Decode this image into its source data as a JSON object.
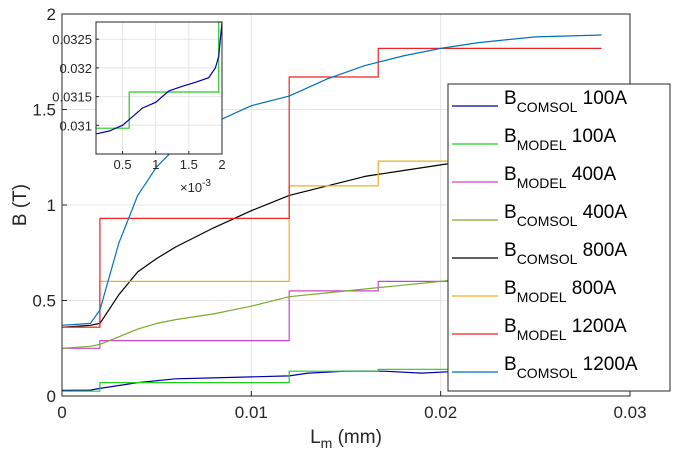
{
  "chart_data": {
    "type": "line",
    "title": "",
    "xlabel_main": "L",
    "xlabel_sub": "m",
    "xlabel_unit": " (mm)",
    "ylabel": "B (T)",
    "xlim": [
      0,
      0.03
    ],
    "ylim": [
      0,
      2
    ],
    "x_ticks": [
      "0",
      "0.01",
      "0.02",
      "0.03"
    ],
    "y_ticks": [
      "0",
      "0.5",
      "1",
      "1.5",
      "2"
    ],
    "grid": true,
    "legend_position": "right",
    "series": [
      {
        "name_main": "B",
        "name_sub": "COMSOL",
        "name_tail": " 100A",
        "color": "#0000aa",
        "x": [
          0,
          0.0015,
          0.002,
          0.004,
          0.006,
          0.008,
          0.01,
          0.012,
          0.013,
          0.015,
          0.017,
          0.019,
          0.021,
          0.023,
          0.025,
          0.027,
          0.0285
        ],
        "y": [
          0.03,
          0.031,
          0.04,
          0.07,
          0.09,
          0.095,
          0.1,
          0.105,
          0.12,
          0.13,
          0.13,
          0.12,
          0.13,
          0.15,
          0.155,
          0.16,
          0.16
        ]
      },
      {
        "name_main": "B",
        "name_sub": "MODEL",
        "name_tail": " 100A",
        "color": "#22cc22",
        "step": true,
        "x": [
          0,
          0.002,
          0.012,
          0.0167,
          0.0285
        ],
        "y": [
          0.025,
          0.07,
          0.13,
          0.14,
          0.14
        ]
      },
      {
        "name_main": "B",
        "name_sub": "MODEL",
        "name_tail": " 400A",
        "color": "#cc44cc",
        "step": true,
        "x": [
          0,
          0.002,
          0.012,
          0.0167,
          0.0285
        ],
        "y": [
          0.25,
          0.29,
          0.55,
          0.6,
          0.6
        ]
      },
      {
        "name_main": "B",
        "name_sub": "COMSOL",
        "name_tail": " 400A",
        "color": "#77ac30",
        "x": [
          0,
          0.0015,
          0.002,
          0.003,
          0.004,
          0.005,
          0.006,
          0.008,
          0.01,
          0.012,
          0.014,
          0.016,
          0.018,
          0.02,
          0.022,
          0.025,
          0.0285
        ],
        "y": [
          0.25,
          0.26,
          0.27,
          0.31,
          0.35,
          0.38,
          0.4,
          0.43,
          0.47,
          0.52,
          0.54,
          0.56,
          0.58,
          0.6,
          0.62,
          0.63,
          0.635
        ]
      },
      {
        "name_main": "B",
        "name_sub": "COMSOL",
        "name_tail": " 800A",
        "color": "#000000",
        "x": [
          0,
          0.0015,
          0.002,
          0.003,
          0.004,
          0.005,
          0.006,
          0.008,
          0.01,
          0.012,
          0.014,
          0.016,
          0.018,
          0.02,
          0.022,
          0.025,
          0.0285
        ],
        "y": [
          0.36,
          0.37,
          0.38,
          0.53,
          0.65,
          0.72,
          0.78,
          0.88,
          0.97,
          1.05,
          1.1,
          1.15,
          1.18,
          1.21,
          1.24,
          1.27,
          1.28
        ]
      },
      {
        "name_main": "B",
        "name_sub": "MODEL",
        "name_tail": " 800A",
        "color": "#edb120",
        "step": true,
        "x": [
          0,
          0.002,
          0.012,
          0.0167,
          0.0285
        ],
        "y": [
          0.36,
          0.6,
          1.1,
          1.23,
          1.23
        ]
      },
      {
        "name_main": "B",
        "name_sub": "MODEL",
        "name_tail": " 1200A",
        "color": "#ee2222",
        "step": true,
        "x": [
          0,
          0.002,
          0.012,
          0.0167,
          0.0285
        ],
        "y": [
          0.36,
          0.93,
          1.67,
          1.82,
          1.82
        ]
      },
      {
        "name_main": "B",
        "name_sub": "COMSOL",
        "name_tail": " 1200A",
        "color": "#0072bd",
        "x": [
          0,
          0.0015,
          0.002,
          0.003,
          0.004,
          0.005,
          0.006,
          0.008,
          0.01,
          0.012,
          0.014,
          0.016,
          0.018,
          0.02,
          0.022,
          0.025,
          0.0285
        ],
        "y": [
          0.37,
          0.38,
          0.45,
          0.8,
          1.05,
          1.2,
          1.3,
          1.43,
          1.52,
          1.57,
          1.66,
          1.73,
          1.78,
          1.82,
          1.85,
          1.88,
          1.89
        ]
      }
    ],
    "inset": {
      "xlim": [
        0.0001,
        0.002
      ],
      "ylim": [
        0.0305,
        0.0328
      ],
      "x_ticks": [
        "0.5",
        "1",
        "1.5",
        "2"
      ],
      "x_tick_values": [
        0.0005,
        0.001,
        0.0015,
        0.002
      ],
      "x_exponent_base": "×10",
      "x_exponent_power": "-3",
      "y_ticks": [
        "0.031",
        "0.0315",
        "0.032",
        "0.0325"
      ],
      "y_tick_values": [
        0.031,
        0.0315,
        0.032,
        0.0325
      ],
      "grid": true,
      "series": [
        {
          "color": "#22cc22",
          "x": [
            0.0001,
            0.0006,
            0.0006,
            0.00195,
            0.00195,
            0.002
          ],
          "y": [
            0.03095,
            0.03095,
            0.03158,
            0.03158,
            0.0328,
            0.0328
          ]
        },
        {
          "color": "#0000aa",
          "x": [
            0.0001,
            0.0003,
            0.0005,
            0.0006,
            0.0008,
            0.001,
            0.0012,
            0.0014,
            0.0016,
            0.0018,
            0.0019,
            0.00195,
            0.002
          ],
          "y": [
            0.03085,
            0.0309,
            0.031,
            0.0311,
            0.0313,
            0.0314,
            0.0316,
            0.03168,
            0.03175,
            0.03183,
            0.032,
            0.0322,
            0.0328
          ]
        }
      ]
    }
  }
}
